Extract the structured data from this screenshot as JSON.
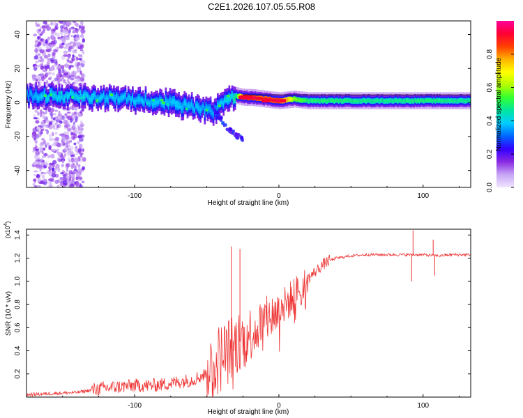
{
  "figure_title": "C2E1.2026.107.05.55.R08",
  "chart_data": [
    {
      "type": "heatmap",
      "title": "C2E1.2026.107.05.55.R08",
      "xlabel": "Height of straight line (km)",
      "ylabel": "Frequency (Hz)",
      "xlim": [
        -175,
        133
      ],
      "ylim": [
        -50,
        48
      ],
      "xticks": [
        -100,
        0,
        100
      ],
      "xtick_labels": [
        "-100",
        "0",
        "100"
      ],
      "yticks": [
        -40,
        -20,
        0,
        20,
        40
      ],
      "ytick_labels": [
        "-40",
        "-20",
        "0",
        "20",
        "40"
      ],
      "colorbar": {
        "label": "Normalized spectral amplitude",
        "range": [
          0,
          1
        ],
        "ticks": [
          0.0,
          0.2,
          0.4,
          0.6,
          0.8
        ],
        "tick_labels": [
          "0.0",
          "0.2",
          "0.4",
          "0.6",
          "0.8"
        ],
        "colors": [
          "#f0e6ff",
          "#c8a6f5",
          "#8a2be2",
          "#3300ff",
          "#0066ff",
          "#00ccff",
          "#00e6a0",
          "#33ff33",
          "#b3ff00",
          "#ffff00",
          "#ffb300",
          "#ff4000",
          "#ff0033",
          "#ff0099"
        ]
      },
      "ridge": {
        "x": [
          -175,
          -160,
          -140,
          -120,
          -100,
          -80,
          -60,
          -45,
          -35,
          -30,
          -25,
          -20,
          -10,
          0,
          10,
          20,
          40,
          60,
          80,
          100,
          120,
          133
        ],
        "freq": [
          4,
          4,
          4,
          3,
          2,
          0,
          -3,
          -5,
          3,
          4,
          3,
          3,
          2,
          1,
          2,
          1,
          1,
          1,
          1,
          1,
          1,
          1
        ],
        "amplitude": [
          0.35,
          0.4,
          0.4,
          0.38,
          0.38,
          0.38,
          0.38,
          0.36,
          0.4,
          0.5,
          0.95,
          0.95,
          0.9,
          0.95,
          0.6,
          0.5,
          0.5,
          0.48,
          0.48,
          0.5,
          0.48,
          0.48
        ]
      },
      "branch": {
        "x": [
          -45,
          -40,
          -35,
          -30,
          -25
        ],
        "freq": [
          -5,
          -10,
          -16,
          -19,
          -22
        ]
      },
      "scatter_region": {
        "x": [
          -170,
          -135
        ],
        "freq": [
          -50,
          48
        ],
        "amplitude": 0.15
      }
    },
    {
      "type": "line",
      "xlabel": "Height of straight line (km)",
      "ylabel": "SNR (10 * v/v)",
      "y_multiplier_label": "(x10",
      "y_multiplier_exp": "4",
      "y_multiplier_close": ")",
      "xlim": [
        -175,
        133
      ],
      "ylim": [
        0,
        1.45
      ],
      "xticks": [
        -100,
        0,
        100
      ],
      "xtick_labels": [
        "-100",
        "0",
        "100"
      ],
      "yticks": [
        0.2,
        0.4,
        0.6,
        0.8,
        1.0,
        1.2,
        1.4
      ],
      "ytick_labels": [
        "0.2",
        "0.4",
        "0.6",
        "0.8",
        "1.0",
        "1.2",
        "1.4"
      ],
      "color": "#ee3333",
      "series": [
        {
          "name": "SNR",
          "x": [
            -175,
            -160,
            -140,
            -130,
            -120,
            -110,
            -100,
            -90,
            -80,
            -70,
            -60,
            -50,
            -45,
            -40,
            -35,
            -30,
            -25,
            -20,
            -15,
            -10,
            -5,
            0,
            5,
            10,
            15,
            20,
            25,
            30,
            35,
            40,
            50,
            60,
            70,
            80,
            90,
            100,
            110,
            120,
            133
          ],
          "y": [
            0.02,
            0.03,
            0.04,
            0.06,
            0.08,
            0.09,
            0.1,
            0.1,
            0.11,
            0.13,
            0.15,
            0.2,
            0.28,
            0.35,
            0.4,
            0.45,
            0.5,
            0.55,
            0.6,
            0.65,
            0.7,
            0.75,
            0.8,
            0.88,
            0.95,
            1.02,
            1.08,
            1.14,
            1.18,
            1.2,
            1.22,
            1.23,
            1.23,
            1.23,
            1.23,
            1.23,
            1.22,
            1.23,
            1.23
          ]
        }
      ],
      "spikes": [
        {
          "x": -33,
          "y": 1.3
        },
        {
          "x": -27,
          "y": 1.28
        },
        {
          "x": 93,
          "y": 1.44
        },
        {
          "x": 92,
          "y": 1.0
        },
        {
          "x": 107,
          "y": 1.36
        },
        {
          "x": 108,
          "y": 1.05
        }
      ]
    }
  ]
}
